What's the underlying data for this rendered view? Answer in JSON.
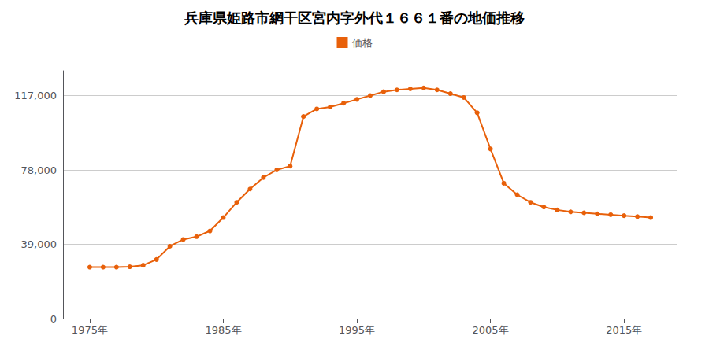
{
  "chart_data": {
    "type": "line",
    "title": "兵庫県姫路市網干区宮内字外代１６６１番の地価推移",
    "x": [
      1975,
      1976,
      1977,
      1978,
      1979,
      1980,
      1981,
      1982,
      1983,
      1984,
      1985,
      1986,
      1987,
      1988,
      1989,
      1990,
      1991,
      1992,
      1993,
      1994,
      1995,
      1996,
      1997,
      1998,
      1999,
      2000,
      2001,
      2002,
      2003,
      2004,
      2005,
      2006,
      2007,
      2008,
      2009,
      2010,
      2011,
      2012,
      2013,
      2014,
      2015,
      2016,
      2017
    ],
    "series": [
      {
        "name": "価格",
        "color": "#e8600a",
        "marker": "circle",
        "values": [
          27000,
          27000,
          27000,
          27200,
          28000,
          31000,
          38000,
          41500,
          43000,
          46000,
          53000,
          61000,
          68000,
          74000,
          78000,
          80000,
          106000,
          110000,
          111000,
          113000,
          115000,
          117000,
          119000,
          120000,
          120500,
          121000,
          120000,
          118000,
          116000,
          108000,
          89000,
          71000,
          65000,
          61000,
          58500,
          57000,
          56000,
          55500,
          55000,
          54500,
          54000,
          53500,
          53000
        ]
      }
    ],
    "xlim": [
      1973,
      2019
    ],
    "xticks": [
      {
        "value": 1975,
        "label": "1975年"
      },
      {
        "value": 1985,
        "label": "1985年"
      },
      {
        "value": 1995,
        "label": "1995年"
      },
      {
        "value": 2005,
        "label": "2005年"
      },
      {
        "value": 2015,
        "label": "2015年"
      }
    ],
    "ylim": [
      0,
      130000
    ],
    "yticks": [
      0,
      {
        "value": 39000,
        "label": "39,000"
      },
      {
        "value": 78000,
        "label": "78,000"
      },
      {
        "value": 117000,
        "label": "117,000"
      }
    ],
    "grid": true,
    "legend": "top"
  }
}
